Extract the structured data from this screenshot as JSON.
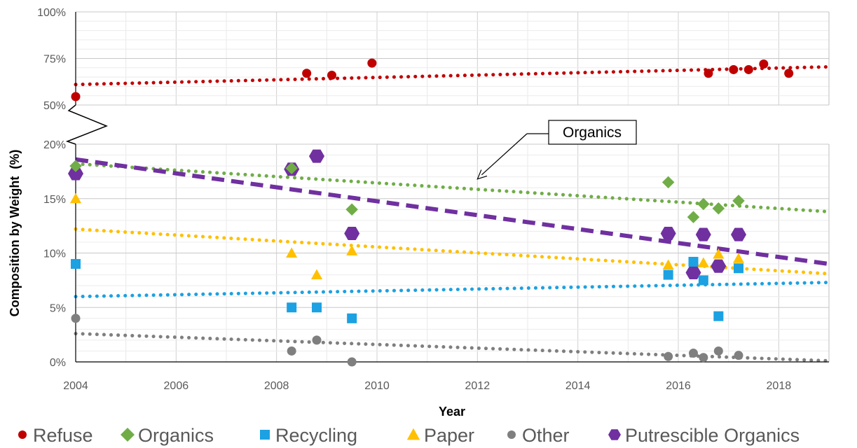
{
  "chart_data": {
    "type": "scatter",
    "xlabel": "Year",
    "ylabel": "Composition by Weight  (%)",
    "xlim": [
      2004,
      2019
    ],
    "x_ticks": [
      2004,
      2006,
      2008,
      2010,
      2012,
      2014,
      2016,
      2018
    ],
    "x_tick_labels": [
      "2004",
      "2006",
      "2008",
      "2010",
      "2012",
      "2014",
      "2016",
      "2018"
    ],
    "axis_break": true,
    "upper_panel": {
      "ylim": [
        50,
        100
      ],
      "y_ticks": [
        50,
        75,
        100
      ],
      "y_tick_labels": [
        "50%",
        "75%",
        "100%"
      ]
    },
    "lower_panel": {
      "ylim": [
        0,
        20
      ],
      "y_ticks": [
        0,
        5,
        10,
        15,
        20
      ],
      "y_tick_labels": [
        "0%",
        "5%",
        "10%",
        "15%",
        "20%"
      ]
    },
    "grid": true,
    "legend_position": "bottom",
    "annotation": {
      "text": "Organics",
      "points_to": {
        "x": 2012,
        "y": 16.8
      }
    },
    "series": [
      {
        "name": "Refuse",
        "marker": "circle",
        "color": "#C00000",
        "panel": "upper",
        "x": [
          2004.0,
          2008.6,
          2009.1,
          2009.9,
          2016.6,
          2017.1,
          2017.4,
          2017.7,
          2018.2
        ],
        "y": [
          54.5,
          67,
          66,
          72.5,
          67,
          69,
          69,
          72,
          67
        ],
        "trend": {
          "style": "dotted",
          "start": [
            2004,
            61
          ],
          "end": [
            2019,
            70.5
          ]
        }
      },
      {
        "name": "Organics",
        "marker": "diamond",
        "color": "#70AD47",
        "panel": "lower",
        "x": [
          2004.0,
          2008.3,
          2009.5,
          2015.8,
          2016.3,
          2016.5,
          2016.8,
          2017.2
        ],
        "y": [
          18,
          17.8,
          14,
          16.5,
          13.3,
          14.5,
          14.1,
          14.8
        ],
        "trend": {
          "style": "dotted",
          "start": [
            2004,
            18.2
          ],
          "end": [
            2019,
            13.8
          ]
        }
      },
      {
        "name": "Recycling",
        "marker": "square",
        "color": "#1CA1E2",
        "panel": "lower",
        "x": [
          2004.0,
          2008.3,
          2008.8,
          2009.5,
          2015.8,
          2016.3,
          2016.5,
          2016.8,
          2017.2
        ],
        "y": [
          9,
          5,
          5,
          4,
          8,
          9.2,
          7.5,
          4.2,
          8.6
        ],
        "trend": {
          "style": "dotted",
          "start": [
            2004,
            6
          ],
          "end": [
            2019,
            7.3
          ]
        }
      },
      {
        "name": "Paper",
        "marker": "triangle",
        "color": "#FFC000",
        "panel": "lower",
        "x": [
          2004.0,
          2008.3,
          2008.8,
          2009.5,
          2015.8,
          2016.5,
          2016.8,
          2017.2
        ],
        "y": [
          15,
          10,
          8,
          10.2,
          8.9,
          9.1,
          9.9,
          9.5
        ],
        "trend": {
          "style": "dotted",
          "start": [
            2004,
            12.2
          ],
          "end": [
            2019,
            8.1
          ]
        }
      },
      {
        "name": "Other",
        "marker": "circle",
        "color": "#7F7F7F",
        "panel": "lower",
        "x": [
          2004.0,
          2008.3,
          2008.8,
          2009.5,
          2015.8,
          2016.3,
          2016.5,
          2016.8,
          2017.2
        ],
        "y": [
          4,
          1,
          2,
          0,
          0.5,
          0.8,
          0.4,
          1,
          0.6
        ],
        "trend": {
          "style": "dotted",
          "start": [
            2004,
            2.6
          ],
          "end": [
            2019,
            0.1
          ]
        }
      },
      {
        "name": "Putrescible Organics",
        "marker": "hexagon",
        "color": "#7030A0",
        "panel": "lower",
        "x": [
          2004.0,
          2008.3,
          2008.8,
          2009.5,
          2015.8,
          2016.3,
          2016.5,
          2016.8,
          2017.2
        ],
        "y": [
          17.3,
          17.7,
          18.9,
          11.8,
          11.8,
          8.2,
          11.7,
          8.8,
          11.7
        ],
        "trend": {
          "style": "dashed",
          "start": [
            2004,
            18.6
          ],
          "end": [
            2019,
            9
          ]
        }
      }
    ]
  }
}
